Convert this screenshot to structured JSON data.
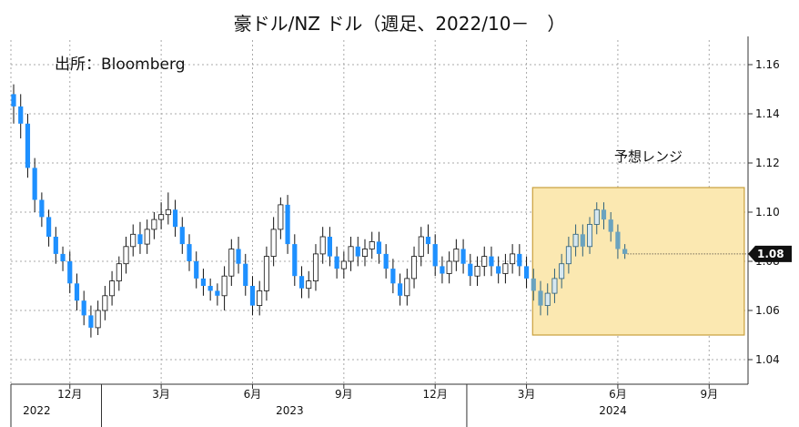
{
  "chart_data": {
    "type": "candlestick",
    "title": "豪ドル/NZ ドル（週足、2022/10－　）",
    "source_note": "出所：Bloomberg",
    "forecast_label": "予想レンジ",
    "last_value_label": "1.08",
    "ylim": [
      1.03,
      1.17
    ],
    "y_ticks": [
      1.04,
      1.06,
      1.08,
      1.1,
      1.12,
      1.14,
      1.16
    ],
    "y_tick_labels": [
      "1.04",
      "1.06",
      "1.08",
      "1.10",
      "1.12",
      "1.14",
      "1.16"
    ],
    "month_ticks": [
      {
        "label": "12月",
        "week": 8
      },
      {
        "label": "3月",
        "week": 21
      },
      {
        "label": "6月",
        "week": 34
      },
      {
        "label": "9月",
        "week": 47
      },
      {
        "label": "12月",
        "week": 60
      },
      {
        "label": "3月",
        "week": 73
      },
      {
        "label": "6月",
        "week": 86
      },
      {
        "label": "9月",
        "week": 99
      }
    ],
    "years": [
      {
        "label": "2022",
        "week": 2
      },
      {
        "label": "2023",
        "week": 38
      },
      {
        "label": "2024",
        "week": 84
      }
    ],
    "year_separators": [
      12.5,
      64.5
    ],
    "forecast_range": {
      "week_start": 74,
      "week_end": 104,
      "low": 1.05,
      "high": 1.11
    },
    "candles": [
      [
        1.148,
        1.143,
        1.152,
        1.136
      ],
      [
        1.143,
        1.136,
        1.148,
        1.13
      ],
      [
        1.136,
        1.118,
        1.14,
        1.114
      ],
      [
        1.118,
        1.105,
        1.122,
        1.1
      ],
      [
        1.105,
        1.098,
        1.108,
        1.094
      ],
      [
        1.098,
        1.09,
        1.101,
        1.086
      ],
      [
        1.09,
        1.083,
        1.094,
        1.079
      ],
      [
        1.083,
        1.08,
        1.086,
        1.076
      ],
      [
        1.08,
        1.071,
        1.084,
        1.067
      ],
      [
        1.071,
        1.064,
        1.075,
        1.06
      ],
      [
        1.064,
        1.058,
        1.068,
        1.054
      ],
      [
        1.058,
        1.053,
        1.062,
        1.049
      ],
      [
        1.053,
        1.06,
        1.064,
        1.05
      ],
      [
        1.06,
        1.066,
        1.07,
        1.056
      ],
      [
        1.066,
        1.072,
        1.076,
        1.062
      ],
      [
        1.072,
        1.079,
        1.082,
        1.068
      ],
      [
        1.079,
        1.086,
        1.09,
        1.075
      ],
      [
        1.086,
        1.091,
        1.095,
        1.082
      ],
      [
        1.091,
        1.087,
        1.096,
        1.083
      ],
      [
        1.087,
        1.093,
        1.097,
        1.083
      ],
      [
        1.093,
        1.097,
        1.1,
        1.089
      ],
      [
        1.097,
        1.099,
        1.104,
        1.093
      ],
      [
        1.099,
        1.101,
        1.108,
        1.095
      ],
      [
        1.101,
        1.094,
        1.105,
        1.09
      ],
      [
        1.094,
        1.087,
        1.098,
        1.083
      ],
      [
        1.087,
        1.08,
        1.091,
        1.076
      ],
      [
        1.08,
        1.073,
        1.084,
        1.069
      ],
      [
        1.073,
        1.07,
        1.077,
        1.066
      ],
      [
        1.07,
        1.068,
        1.073,
        1.064
      ],
      [
        1.068,
        1.066,
        1.071,
        1.062
      ],
      [
        1.066,
        1.074,
        1.078,
        1.06
      ],
      [
        1.074,
        1.085,
        1.089,
        1.07
      ],
      [
        1.085,
        1.079,
        1.09,
        1.075
      ],
      [
        1.079,
        1.07,
        1.083,
        1.066
      ],
      [
        1.07,
        1.062,
        1.074,
        1.058
      ],
      [
        1.062,
        1.068,
        1.072,
        1.058
      ],
      [
        1.068,
        1.082,
        1.086,
        1.064
      ],
      [
        1.082,
        1.093,
        1.098,
        1.078
      ],
      [
        1.093,
        1.103,
        1.106,
        1.089
      ],
      [
        1.103,
        1.087,
        1.107,
        1.083
      ],
      [
        1.087,
        1.074,
        1.091,
        1.07
      ],
      [
        1.074,
        1.069,
        1.078,
        1.065
      ],
      [
        1.069,
        1.072,
        1.076,
        1.065
      ],
      [
        1.072,
        1.083,
        1.087,
        1.068
      ],
      [
        1.083,
        1.09,
        1.094,
        1.079
      ],
      [
        1.09,
        1.082,
        1.094,
        1.078
      ],
      [
        1.082,
        1.077,
        1.086,
        1.073
      ],
      [
        1.077,
        1.08,
        1.084,
        1.073
      ],
      [
        1.08,
        1.086,
        1.09,
        1.076
      ],
      [
        1.086,
        1.082,
        1.09,
        1.078
      ],
      [
        1.082,
        1.085,
        1.089,
        1.078
      ],
      [
        1.085,
        1.088,
        1.092,
        1.081
      ],
      [
        1.088,
        1.083,
        1.092,
        1.079
      ],
      [
        1.083,
        1.077,
        1.087,
        1.073
      ],
      [
        1.077,
        1.071,
        1.081,
        1.067
      ],
      [
        1.071,
        1.066,
        1.075,
        1.062
      ],
      [
        1.066,
        1.073,
        1.077,
        1.062
      ],
      [
        1.073,
        1.082,
        1.086,
        1.069
      ],
      [
        1.082,
        1.09,
        1.094,
        1.078
      ],
      [
        1.09,
        1.087,
        1.095,
        1.083
      ],
      [
        1.087,
        1.078,
        1.091,
        1.074
      ],
      [
        1.078,
        1.075,
        1.082,
        1.071
      ],
      [
        1.075,
        1.08,
        1.084,
        1.071
      ],
      [
        1.08,
        1.085,
        1.089,
        1.076
      ],
      [
        1.085,
        1.079,
        1.089,
        1.075
      ],
      [
        1.079,
        1.074,
        1.083,
        1.07
      ],
      [
        1.074,
        1.078,
        1.082,
        1.07
      ],
      [
        1.078,
        1.082,
        1.086,
        1.074
      ],
      [
        1.082,
        1.078,
        1.086,
        1.074
      ],
      [
        1.078,
        1.075,
        1.082,
        1.071
      ],
      [
        1.075,
        1.079,
        1.083,
        1.071
      ],
      [
        1.079,
        1.083,
        1.087,
        1.075
      ],
      [
        1.083,
        1.078,
        1.087,
        1.074
      ],
      [
        1.078,
        1.073,
        1.082,
        1.069
      ],
      [
        1.073,
        1.068,
        1.077,
        1.064
      ],
      [
        1.068,
        1.062,
        1.072,
        1.058
      ],
      [
        1.062,
        1.067,
        1.071,
        1.058
      ],
      [
        1.067,
        1.073,
        1.077,
        1.063
      ],
      [
        1.073,
        1.079,
        1.083,
        1.069
      ],
      [
        1.079,
        1.086,
        1.09,
        1.075
      ],
      [
        1.086,
        1.091,
        1.095,
        1.082
      ],
      [
        1.091,
        1.086,
        1.095,
        1.082
      ],
      [
        1.086,
        1.095,
        1.098,
        1.083
      ],
      [
        1.095,
        1.101,
        1.104,
        1.091
      ],
      [
        1.101,
        1.097,
        1.104,
        1.093
      ],
      [
        1.097,
        1.092,
        1.1,
        1.088
      ],
      [
        1.092,
        1.085,
        1.095,
        1.081
      ],
      [
        1.085,
        1.083,
        1.087,
        1.081
      ]
    ]
  },
  "colors": {
    "up": "#ffffff",
    "down": "#1e90ff",
    "forecast_candle": "#6aa3bf",
    "forecast_fill": "#fbe8b1",
    "forecast_border": "#c9a03c",
    "grid": "#a9a9a9",
    "last_badge": "#111111"
  }
}
